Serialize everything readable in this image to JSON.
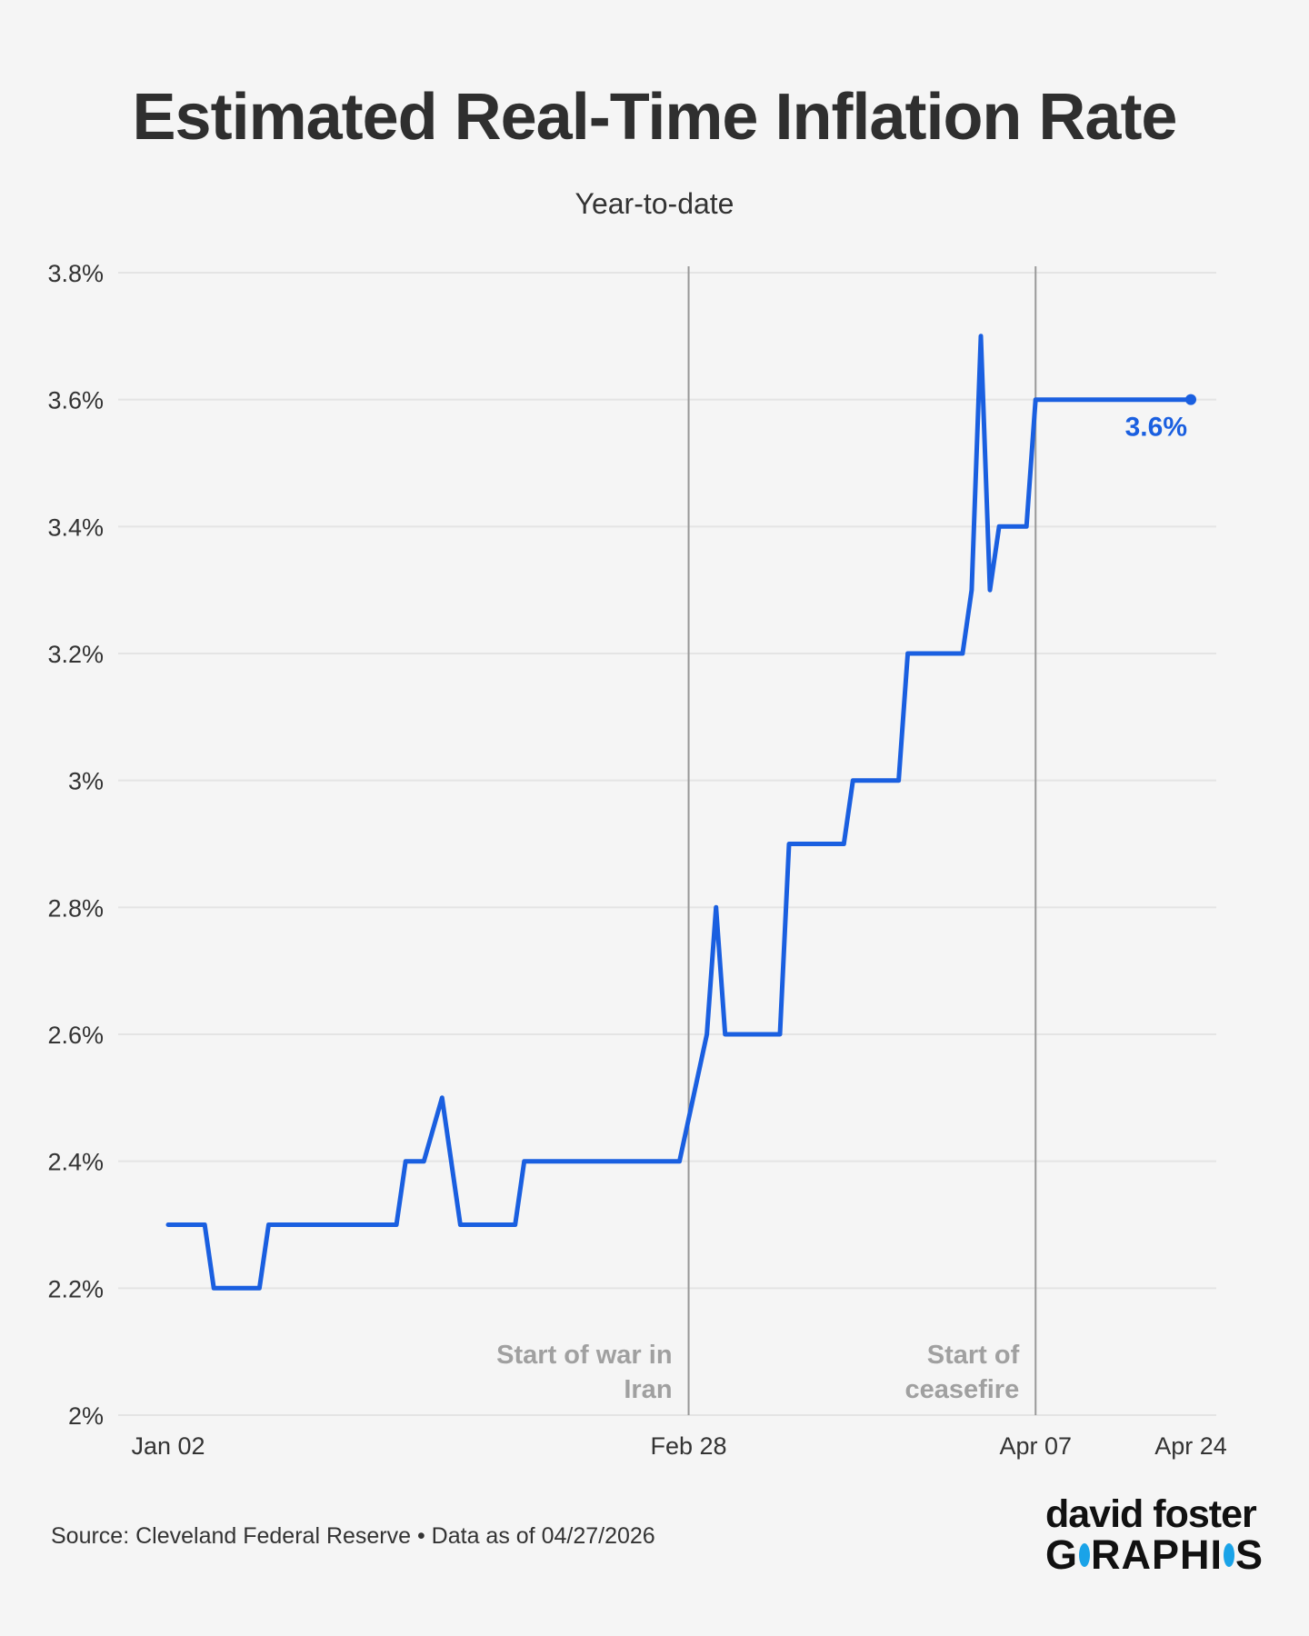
{
  "chart_data": {
    "type": "line",
    "title": "Estimated Real-Time Inflation Rate",
    "subtitle": "Year-to-date",
    "xlabel": "",
    "ylabel": "",
    "x_range": [
      "2026-01-02",
      "2026-04-24"
    ],
    "ylim": [
      2.0,
      3.8
    ],
    "y_ticks": [
      {
        "value": 2.0,
        "label": "2%"
      },
      {
        "value": 2.2,
        "label": "2.2%"
      },
      {
        "value": 2.4,
        "label": "2.4%"
      },
      {
        "value": 2.6,
        "label": "2.6%"
      },
      {
        "value": 2.8,
        "label": "2.8%"
      },
      {
        "value": 3.0,
        "label": "3%"
      },
      {
        "value": 3.2,
        "label": "3.2%"
      },
      {
        "value": 3.4,
        "label": "3.4%"
      },
      {
        "value": 3.6,
        "label": "3.6%"
      },
      {
        "value": 3.8,
        "label": "3.8%"
      }
    ],
    "x_ticks": [
      {
        "date": "2026-01-02",
        "label": "Jan 02"
      },
      {
        "date": "2026-02-28",
        "label": "Feb 28"
      },
      {
        "date": "2026-04-07",
        "label": "Apr 07"
      },
      {
        "date": "2026-04-24",
        "label": "Apr 24"
      }
    ],
    "grid": true,
    "line_color": "#1a5fe0",
    "series": [
      {
        "points": [
          [
            "2026-01-02",
            2.3
          ],
          [
            "2026-01-06",
            2.3
          ],
          [
            "2026-01-07",
            2.2
          ],
          [
            "2026-01-12",
            2.2
          ],
          [
            "2026-01-13",
            2.3
          ],
          [
            "2026-01-27",
            2.3
          ],
          [
            "2026-01-28",
            2.4
          ],
          [
            "2026-01-30",
            2.4
          ],
          [
            "2026-02-01",
            2.5
          ],
          [
            "2026-02-03",
            2.3
          ],
          [
            "2026-02-09",
            2.3
          ],
          [
            "2026-02-10",
            2.4
          ],
          [
            "2026-02-27",
            2.4
          ],
          [
            "2026-03-02",
            2.6
          ],
          [
            "2026-03-03",
            2.8
          ],
          [
            "2026-03-04",
            2.6
          ],
          [
            "2026-03-10",
            2.6
          ],
          [
            "2026-03-11",
            2.9
          ],
          [
            "2026-03-17",
            2.9
          ],
          [
            "2026-03-18",
            3.0
          ],
          [
            "2026-03-23",
            3.0
          ],
          [
            "2026-03-24",
            3.2
          ],
          [
            "2026-03-30",
            3.2
          ],
          [
            "2026-03-31",
            3.3
          ],
          [
            "2026-04-01",
            3.7
          ],
          [
            "2026-04-02",
            3.3
          ],
          [
            "2026-04-03",
            3.4
          ],
          [
            "2026-04-06",
            3.4
          ],
          [
            "2026-04-07",
            3.6
          ],
          [
            "2026-04-24",
            3.6
          ]
        ]
      }
    ],
    "end_label": "3.6%",
    "annotations": [
      {
        "date": "2026-02-28",
        "lines": [
          "Start of war in",
          "Iran"
        ]
      },
      {
        "date": "2026-04-07",
        "lines": [
          "Start of",
          "ceasefire"
        ]
      }
    ]
  },
  "footer": {
    "source": "Source: Cleveland Federal Reserve • Data as of 04/27/2026",
    "logo_top": "david foster",
    "logo_bottom_a": "G",
    "logo_bottom_b": "RAPHI",
    "logo_bottom_c": "S"
  }
}
